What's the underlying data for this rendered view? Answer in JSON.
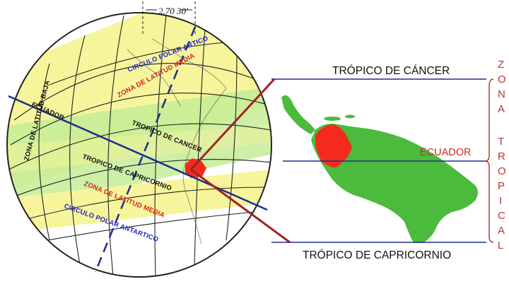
{
  "globe": {
    "top_angle": "2.70 30'",
    "zona_baja": "ZONA DE LATITUD BAJA",
    "circulo_polar_artico": "CIRCULO POLAR ARTICO",
    "zona_media_norte": "ZONA DE LATITUD MEDIA",
    "tropico_cancer": "TROPICO DE CANCER",
    "ecuador": "ECUADOR",
    "tropico_capricornio": "TROPICO DE CAPRICORNIO",
    "zona_media_sur": "ZONA DE LATITUD MEDIA",
    "circulo_polar_antartico": "CIRCULO POLAR ANTARTICO"
  },
  "map": {
    "tropico_cancer": "TRÓPICO DE CÁNCER",
    "ecuador": "ECUADOR",
    "tropico_capricornio": "TRÓPICO DE CAPRICORNIO"
  },
  "side_labels": {
    "zona": [
      "Z",
      "O",
      "N",
      "A"
    ],
    "tropical": [
      "T",
      "R",
      "O",
      "P",
      "I",
      "C",
      "A",
      "L"
    ]
  },
  "colors": {
    "land": "#4cba3c",
    "colombia": "#f42a1e",
    "line": "#1d2d8c",
    "zone_yellow": "#f7f59c",
    "zone_green": "#c4ec96"
  }
}
